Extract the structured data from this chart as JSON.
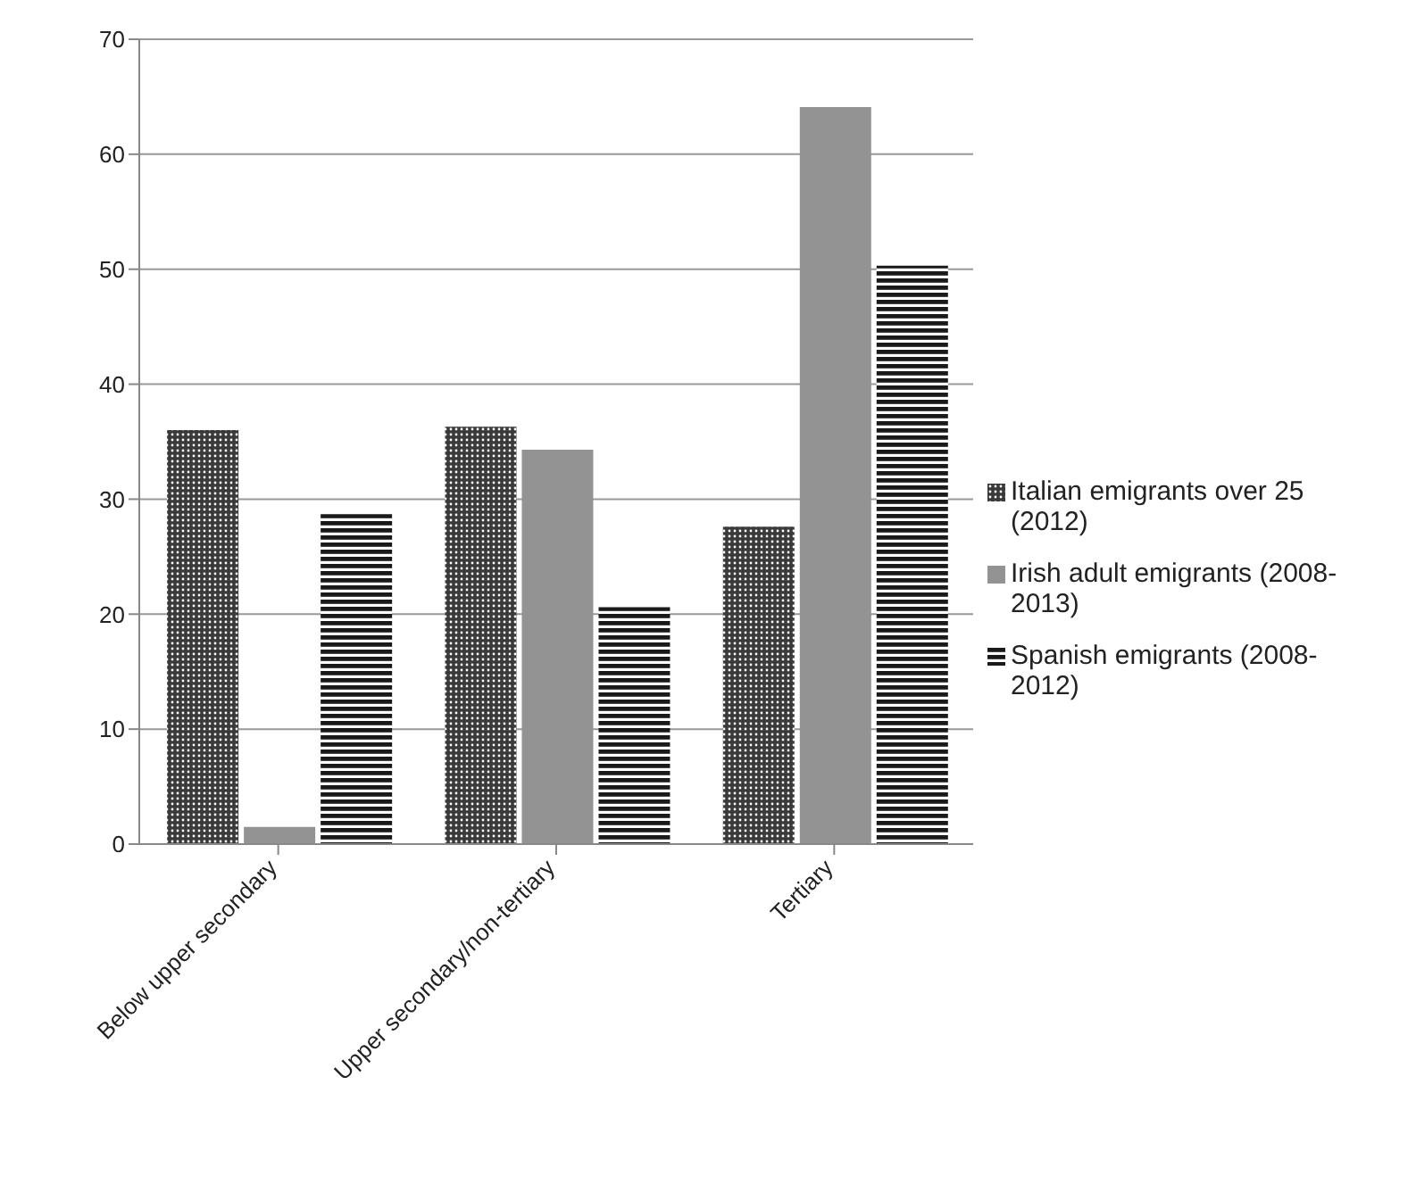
{
  "chart_data": {
    "type": "bar",
    "categories": [
      "Below upper secondary",
      "Upper secondary/non-tertiary",
      "Tertiary"
    ],
    "series": [
      {
        "name": "Italian emigrants over 25 (2012)",
        "color": "#3a3a3a",
        "values": [
          36,
          36.3,
          27.6
        ]
      },
      {
        "name": "Irish adult emigrants (2008-2013)",
        "color": "#939393",
        "values": [
          1.5,
          34.3,
          64.1
        ]
      },
      {
        "name": "Spanish emigrants (2008-2012)",
        "color": "#1a1a1a",
        "values": [
          28.7,
          20.6,
          50.3
        ]
      }
    ],
    "ylim": [
      0,
      70
    ],
    "yticks": [
      0,
      10,
      20,
      30,
      40,
      50,
      60,
      70
    ],
    "grid": "y",
    "legend": "right"
  }
}
